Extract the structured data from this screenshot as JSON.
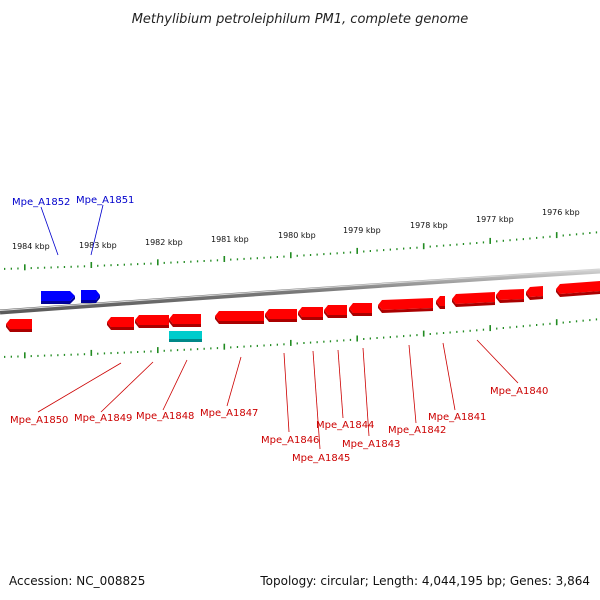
{
  "title": "Methylibium petroleiphilum PM1, complete genome",
  "footer": {
    "accession": "Accession: NC_008825",
    "summary": "Topology: circular; Length: 4,044,195 bp; Genes: 3,864"
  },
  "scale_labels": [
    "1984 kbp",
    "1983 kbp",
    "1982 kbp",
    "1981 kbp",
    "1980 kbp",
    "1979 kbp",
    "1978 kbp",
    "1977 kbp",
    "1976 kbp"
  ],
  "genes": [
    {
      "name": "Mpe_A1852",
      "strand": "forward",
      "color": "#0000ff"
    },
    {
      "name": "Mpe_A1851",
      "strand": "forward",
      "color": "#0000ff"
    },
    {
      "name": "Mpe_A1850",
      "strand": "reverse",
      "color": "#ff0000"
    },
    {
      "name": "Mpe_A1849",
      "strand": "reverse",
      "color": "#ff0000"
    },
    {
      "name": "Mpe_A1848",
      "strand": "reverse",
      "color": "#ff0000"
    },
    {
      "name": "Mpe_A1847",
      "strand": "reverse",
      "color": "#ff0000"
    },
    {
      "name": "Mpe_A1846",
      "strand": "reverse",
      "color": "#ff0000"
    },
    {
      "name": "Mpe_A1845",
      "strand": "reverse",
      "color": "#ff0000"
    },
    {
      "name": "Mpe_A1844",
      "strand": "reverse",
      "color": "#ff0000"
    },
    {
      "name": "Mpe_A1843",
      "strand": "reverse",
      "color": "#ff0000"
    },
    {
      "name": "Mpe_A1842",
      "strand": "reverse",
      "color": "#ff0000"
    },
    {
      "name": "Mpe_A1841",
      "strand": "reverse",
      "color": "#ff0000"
    },
    {
      "name": "Mpe_A1840",
      "strand": "reverse",
      "color": "#ff0000"
    }
  ],
  "colors": {
    "forward": "#0000ff",
    "reverse": "#ff0000",
    "rna_feature": "#00cccc",
    "backbone": "#888888",
    "ticks": "#228b22"
  }
}
